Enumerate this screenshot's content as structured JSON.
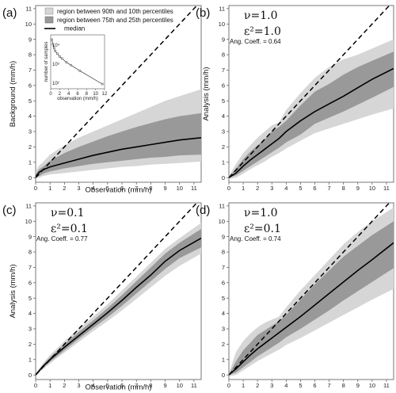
{
  "colors": {
    "band_outer": "#d6d6d6",
    "band_inner": "#999999",
    "median": "#000000",
    "diagonal": "#000000"
  },
  "legend": {
    "outer": "region between 90th and 10th percentiles",
    "inner": "region between 75th and 25th percentiles",
    "median": "median"
  },
  "chart_data": [
    {
      "panel": "(a)",
      "type": "area",
      "title": "",
      "xlabel": "Observation (mm/h)",
      "ylabel": "Background (mm/h)",
      "xlim": [
        0,
        11.5
      ],
      "ylim": [
        -0.3,
        11.2
      ],
      "xticks": [
        0,
        1,
        2,
        3,
        4,
        5,
        6,
        7,
        8,
        9,
        10,
        11
      ],
      "yticks": [
        0,
        1,
        2,
        3,
        4,
        5,
        6,
        7,
        8,
        9,
        10,
        11
      ],
      "params": [],
      "coef_text": "",
      "x": [
        0,
        0.25,
        0.5,
        1,
        2,
        3,
        4,
        5,
        6,
        7,
        8,
        9,
        10,
        11.5
      ],
      "series": [
        {
          "role": "p90",
          "values": [
            0.4,
            0.8,
            1.0,
            1.5,
            2.1,
            2.6,
            3.0,
            3.4,
            3.8,
            4.2,
            4.6,
            5.0,
            5.3,
            5.75
          ]
        },
        {
          "role": "p75",
          "values": [
            0.25,
            0.55,
            0.7,
            1.1,
            1.6,
            2.0,
            2.35,
            2.7,
            3.0,
            3.3,
            3.55,
            3.8,
            4.0,
            4.2
          ]
        },
        {
          "role": "median",
          "values": [
            0.05,
            0.35,
            0.5,
            0.7,
            0.95,
            1.2,
            1.45,
            1.65,
            1.85,
            2.0,
            2.15,
            2.3,
            2.45,
            2.6
          ]
        },
        {
          "role": "p25",
          "values": [
            0.0,
            0.1,
            0.25,
            0.4,
            0.6,
            0.75,
            0.9,
            1.0,
            1.1,
            1.2,
            1.3,
            1.35,
            1.45,
            1.5
          ]
        },
        {
          "role": "p10",
          "values": [
            -0.05,
            0.0,
            0.1,
            0.2,
            0.3,
            0.4,
            0.5,
            0.6,
            0.7,
            0.75,
            0.85,
            0.9,
            0.95,
            1.05
          ]
        }
      ],
      "inset": {
        "xlabel": "observation (mm/h)",
        "ylabel": "number of samples",
        "xlim": [
          0,
          12
        ],
        "xticks": [
          0,
          2,
          4,
          6,
          8,
          10,
          12
        ],
        "yticks": [
          "10⁴",
          "10³",
          "10²"
        ],
        "x": [
          0.25,
          0.5,
          0.75,
          1,
          1.5,
          2,
          2.5,
          3.5,
          4.5,
          6.5,
          11.5
        ],
        "log_counts": [
          4.3,
          4.05,
          3.85,
          3.7,
          3.55,
          3.4,
          3.3,
          3.1,
          2.95,
          2.65,
          1.95
        ]
      }
    },
    {
      "panel": "(b)",
      "type": "area",
      "xlabel": "",
      "ylabel": "Analysis (mm/h)",
      "xlim": [
        0,
        11.5
      ],
      "ylim": [
        -0.3,
        11.2
      ],
      "xticks": [
        0,
        1,
        2,
        3,
        4,
        5,
        6,
        7,
        8,
        9,
        10,
        11
      ],
      "yticks": [
        0,
        1,
        2,
        3,
        4,
        5,
        6,
        7,
        8,
        9,
        10,
        11
      ],
      "params": [
        "ν=1.0",
        "ε²=1.0"
      ],
      "coef_text": "Ang. Coeff. = 0.64",
      "x": [
        0,
        0.5,
        1,
        1.5,
        2,
        2.5,
        3,
        3.5,
        4,
        5,
        6,
        7,
        8,
        9,
        10,
        11.5
      ],
      "series": [
        {
          "role": "p90",
          "values": [
            0.1,
            0.9,
            1.6,
            2.1,
            2.6,
            3.0,
            3.4,
            3.6,
            4.4,
            5.5,
            6.5,
            7.2,
            7.7,
            8.0,
            8.4,
            9.0
          ]
        },
        {
          "role": "p75",
          "values": [
            0.05,
            0.6,
            1.2,
            1.7,
            2.1,
            2.5,
            3.0,
            3.3,
            3.7,
            4.7,
            5.6,
            6.1,
            6.7,
            7.2,
            7.6,
            8.2
          ]
        },
        {
          "role": "median",
          "values": [
            0.0,
            0.3,
            0.75,
            1.15,
            1.5,
            1.85,
            2.2,
            2.55,
            3.0,
            3.7,
            4.3,
            4.8,
            5.3,
            5.85,
            6.4,
            7.1
          ]
        },
        {
          "role": "p25",
          "values": [
            0.0,
            0.15,
            0.45,
            0.75,
            1.05,
            1.35,
            1.65,
            1.95,
            2.3,
            2.8,
            3.5,
            3.9,
            4.3,
            4.75,
            5.2,
            5.9
          ]
        },
        {
          "role": "p10",
          "values": [
            -0.1,
            0.0,
            0.25,
            0.55,
            0.8,
            1.05,
            1.35,
            1.6,
            1.9,
            2.4,
            2.9,
            3.2,
            3.5,
            3.8,
            4.1,
            4.5
          ]
        }
      ]
    },
    {
      "panel": "(c)",
      "type": "area",
      "xlabel": "Observation (mm/h)",
      "ylabel": "Analysis (mm/h)",
      "xlim": [
        0,
        11.5
      ],
      "ylim": [
        -0.3,
        11.2
      ],
      "xticks": [
        0,
        1,
        2,
        3,
        4,
        5,
        6,
        7,
        8,
        9,
        10,
        11
      ],
      "yticks": [
        0,
        1,
        2,
        3,
        4,
        5,
        6,
        7,
        8,
        9,
        10,
        11
      ],
      "params": [
        "ν=0.1",
        "ε²=0.1"
      ],
      "coef_text": "Ang. Coeff. = 0.77",
      "x": [
        0,
        0.5,
        1,
        2,
        3,
        4,
        5,
        6,
        7,
        8,
        9,
        10,
        11.5
      ],
      "series": [
        {
          "role": "p90",
          "values": [
            0.1,
            0.75,
            1.3,
            2.2,
            3.0,
            3.8,
            4.6,
            5.5,
            6.4,
            7.3,
            8.2,
            8.9,
            9.9
          ]
        },
        {
          "role": "p75",
          "values": [
            0.05,
            0.65,
            1.15,
            2.0,
            2.8,
            3.55,
            4.35,
            5.2,
            6.1,
            7.0,
            7.9,
            8.6,
            9.5
          ]
        },
        {
          "role": "median",
          "values": [
            0.0,
            0.55,
            1.0,
            1.8,
            2.55,
            3.3,
            4.05,
            4.85,
            5.7,
            6.5,
            7.4,
            8.1,
            8.9
          ]
        },
        {
          "role": "p25",
          "values": [
            0.0,
            0.45,
            0.85,
            1.6,
            2.35,
            3.05,
            3.75,
            4.5,
            5.3,
            6.1,
            6.9,
            7.6,
            8.3
          ]
        },
        {
          "role": "p10",
          "values": [
            -0.05,
            0.35,
            0.75,
            1.45,
            2.15,
            2.85,
            3.5,
            4.2,
            4.95,
            5.7,
            6.45,
            7.1,
            7.9
          ]
        }
      ]
    },
    {
      "panel": "(d)",
      "type": "area",
      "xlabel": "",
      "ylabel": "",
      "xlim": [
        0,
        11.5
      ],
      "ylim": [
        -0.3,
        11.2
      ],
      "xticks": [
        0,
        1,
        2,
        3,
        4,
        5,
        6,
        7,
        8,
        9,
        10,
        11
      ],
      "yticks": [
        0,
        1,
        2,
        3,
        4,
        5,
        6,
        7,
        8,
        9,
        10,
        11
      ],
      "params": [
        "ν=1.0",
        "ε²=0.1"
      ],
      "coef_text": "Ang. Coeff. = 0.74",
      "x": [
        0,
        0.5,
        1,
        1.5,
        2,
        2.5,
        3,
        3.5,
        4,
        5,
        6,
        7,
        8,
        9,
        10,
        11.5
      ],
      "series": [
        {
          "role": "p90",
          "values": [
            0.1,
            1.5,
            2.2,
            2.7,
            3.1,
            3.4,
            3.6,
            3.8,
            4.4,
            5.5,
            6.5,
            7.5,
            8.5,
            9.3,
            10.0,
            10.9
          ]
        },
        {
          "role": "p75",
          "values": [
            0.05,
            0.9,
            1.6,
            2.1,
            2.6,
            2.9,
            3.2,
            3.5,
            3.9,
            4.9,
            5.9,
            6.8,
            7.7,
            8.4,
            9.1,
            10.0
          ]
        },
        {
          "role": "median",
          "values": [
            0.0,
            0.4,
            0.85,
            1.3,
            1.7,
            2.05,
            2.4,
            2.75,
            3.1,
            3.8,
            4.55,
            5.3,
            6.05,
            6.8,
            7.5,
            8.6
          ]
        },
        {
          "role": "p25",
          "values": [
            0.0,
            0.15,
            0.5,
            0.85,
            1.2,
            1.5,
            1.8,
            2.1,
            2.45,
            3.0,
            3.6,
            4.2,
            4.85,
            5.45,
            6.05,
            6.95
          ]
        },
        {
          "role": "p10",
          "values": [
            -0.1,
            0.0,
            0.3,
            0.6,
            0.9,
            1.15,
            1.4,
            1.65,
            1.95,
            2.4,
            2.9,
            3.4,
            3.9,
            4.4,
            4.9,
            5.6
          ]
        }
      ]
    }
  ]
}
